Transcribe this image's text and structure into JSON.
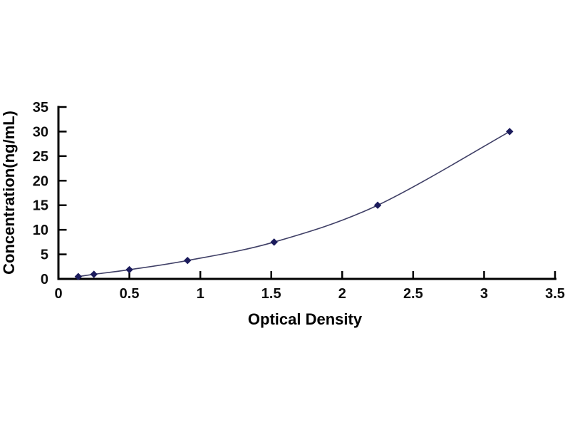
{
  "chart_data": {
    "type": "line",
    "title": "",
    "xlabel": "Optical Density",
    "ylabel": "Concentration(ng/mL)",
    "x": [
      0.14,
      0.25,
      0.5,
      0.91,
      1.52,
      2.25,
      3.18
    ],
    "y": [
      0.47,
      0.94,
      1.88,
      3.75,
      7.5,
      15,
      30
    ],
    "xlim": [
      0,
      3.5
    ],
    "ylim": [
      0,
      35
    ],
    "xticks": [
      0,
      0.5,
      1,
      1.5,
      2,
      2.5,
      3,
      3.5
    ],
    "xtick_labels": [
      "0",
      "0.5",
      "1",
      "1.5",
      "2",
      "2.5",
      "3",
      "3.5"
    ],
    "yticks": [
      0,
      5,
      10,
      15,
      20,
      25,
      30,
      35
    ],
    "ytick_labels": [
      "0",
      "5",
      "10",
      "15",
      "20",
      "25",
      "30",
      "35"
    ],
    "grid": false,
    "legend": "none",
    "marker_shape": "diamond",
    "colors": {
      "axis": "#000000",
      "tick_label": "#0d0d0d",
      "line": "#3f3f66",
      "marker": "#1b1b5c",
      "background": "#ffffff"
    }
  }
}
